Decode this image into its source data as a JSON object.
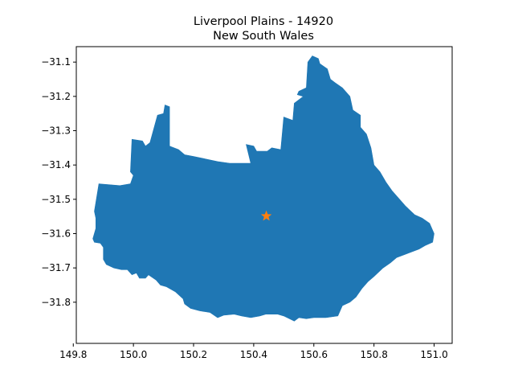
{
  "title": {
    "line1": "Liverpool Plains - 14920",
    "line2": "New South Wales"
  },
  "colors": {
    "region_fill": "#1f77b4",
    "marker": "#ff7f0e",
    "axis": "#000000"
  },
  "chart_data": {
    "type": "map",
    "xlim": [
      149.81,
      151.06
    ],
    "ylim": [
      -31.92,
      -31.055
    ],
    "x_ticks": [
      149.8,
      150.0,
      150.2,
      150.4,
      150.6,
      150.8,
      151.0
    ],
    "x_tick_labels": [
      "149.8",
      "150.0",
      "150.2",
      "150.4",
      "150.6",
      "150.8",
      "151.0"
    ],
    "y_ticks": [
      -31.1,
      -31.2,
      -31.3,
      -31.4,
      -31.5,
      -31.6,
      -31.7,
      -31.8
    ],
    "y_tick_labels": [
      "−31.1",
      "−31.2",
      "−31.3",
      "−31.4",
      "−31.5",
      "−31.6",
      "−31.7",
      "−31.8"
    ],
    "marker_point": {
      "lon": 150.442,
      "lat": -31.549,
      "shape": "star"
    },
    "boundary": [
      [
        149.87,
        -31.535
      ],
      [
        149.885,
        -31.455
      ],
      [
        149.955,
        -31.46
      ],
      [
        149.99,
        -31.455
      ],
      [
        150.0,
        -31.43
      ],
      [
        149.99,
        -31.42
      ],
      [
        149.995,
        -31.325
      ],
      [
        150.03,
        -31.33
      ],
      [
        150.04,
        -31.345
      ],
      [
        150.055,
        -31.335
      ],
      [
        150.08,
        -31.255
      ],
      [
        150.1,
        -31.25
      ],
      [
        150.105,
        -31.225
      ],
      [
        150.12,
        -31.23
      ],
      [
        150.12,
        -31.345
      ],
      [
        150.15,
        -31.355
      ],
      [
        150.17,
        -31.37
      ],
      [
        150.2,
        -31.375
      ],
      [
        150.28,
        -31.39
      ],
      [
        150.32,
        -31.395
      ],
      [
        150.39,
        -31.395
      ],
      [
        150.375,
        -31.34
      ],
      [
        150.4,
        -31.345
      ],
      [
        150.41,
        -31.36
      ],
      [
        150.445,
        -31.36
      ],
      [
        150.46,
        -31.35
      ],
      [
        150.49,
        -31.355
      ],
      [
        150.5,
        -31.26
      ],
      [
        150.53,
        -31.27
      ],
      [
        150.535,
        -31.22
      ],
      [
        150.565,
        -31.2
      ],
      [
        150.545,
        -31.195
      ],
      [
        150.55,
        -31.185
      ],
      [
        150.575,
        -31.175
      ],
      [
        150.58,
        -31.1
      ],
      [
        150.595,
        -31.082
      ],
      [
        150.615,
        -31.09
      ],
      [
        150.62,
        -31.105
      ],
      [
        150.645,
        -31.12
      ],
      [
        150.655,
        -31.15
      ],
      [
        150.67,
        -31.16
      ],
      [
        150.695,
        -31.175
      ],
      [
        150.72,
        -31.2
      ],
      [
        150.73,
        -31.24
      ],
      [
        150.755,
        -31.255
      ],
      [
        150.755,
        -31.29
      ],
      [
        150.775,
        -31.31
      ],
      [
        150.79,
        -31.35
      ],
      [
        150.8,
        -31.4
      ],
      [
        150.82,
        -31.42
      ],
      [
        150.84,
        -31.45
      ],
      [
        150.86,
        -31.475
      ],
      [
        150.88,
        -31.495
      ],
      [
        150.905,
        -31.52
      ],
      [
        150.935,
        -31.545
      ],
      [
        150.96,
        -31.555
      ],
      [
        150.985,
        -31.57
      ],
      [
        151.0,
        -31.6
      ],
      [
        150.995,
        -31.625
      ],
      [
        150.97,
        -31.635
      ],
      [
        150.95,
        -31.645
      ],
      [
        150.905,
        -31.66
      ],
      [
        150.875,
        -31.67
      ],
      [
        150.855,
        -31.685
      ],
      [
        150.83,
        -31.7
      ],
      [
        150.8,
        -31.725
      ],
      [
        150.78,
        -31.74
      ],
      [
        150.76,
        -31.76
      ],
      [
        150.74,
        -31.785
      ],
      [
        150.72,
        -31.8
      ],
      [
        150.695,
        -31.81
      ],
      [
        150.68,
        -31.84
      ],
      [
        150.64,
        -31.845
      ],
      [
        150.6,
        -31.845
      ],
      [
        150.575,
        -31.848
      ],
      [
        150.55,
        -31.845
      ],
      [
        150.535,
        -31.855
      ],
      [
        150.5,
        -31.84
      ],
      [
        150.48,
        -31.835
      ],
      [
        150.44,
        -31.835
      ],
      [
        150.42,
        -31.84
      ],
      [
        150.39,
        -31.845
      ],
      [
        150.36,
        -31.84
      ],
      [
        150.335,
        -31.835
      ],
      [
        150.3,
        -31.838
      ],
      [
        150.28,
        -31.845
      ],
      [
        150.255,
        -31.83
      ],
      [
        150.22,
        -31.825
      ],
      [
        150.19,
        -31.818
      ],
      [
        150.17,
        -31.805
      ],
      [
        150.165,
        -31.79
      ],
      [
        150.14,
        -31.77
      ],
      [
        150.11,
        -31.755
      ],
      [
        150.09,
        -31.75
      ],
      [
        150.075,
        -31.735
      ],
      [
        150.05,
        -31.72
      ],
      [
        150.04,
        -31.73
      ],
      [
        150.02,
        -31.73
      ],
      [
        150.01,
        -31.715
      ],
      [
        149.995,
        -31.72
      ],
      [
        149.98,
        -31.705
      ],
      [
        149.96,
        -31.705
      ],
      [
        149.935,
        -31.7
      ],
      [
        149.91,
        -31.69
      ],
      [
        149.9,
        -31.675
      ],
      [
        149.9,
        -31.64
      ],
      [
        149.89,
        -31.628
      ],
      [
        149.87,
        -31.625
      ],
      [
        149.865,
        -31.615
      ],
      [
        149.875,
        -31.585
      ],
      [
        149.875,
        -31.555
      ],
      [
        149.87,
        -31.535
      ]
    ]
  }
}
